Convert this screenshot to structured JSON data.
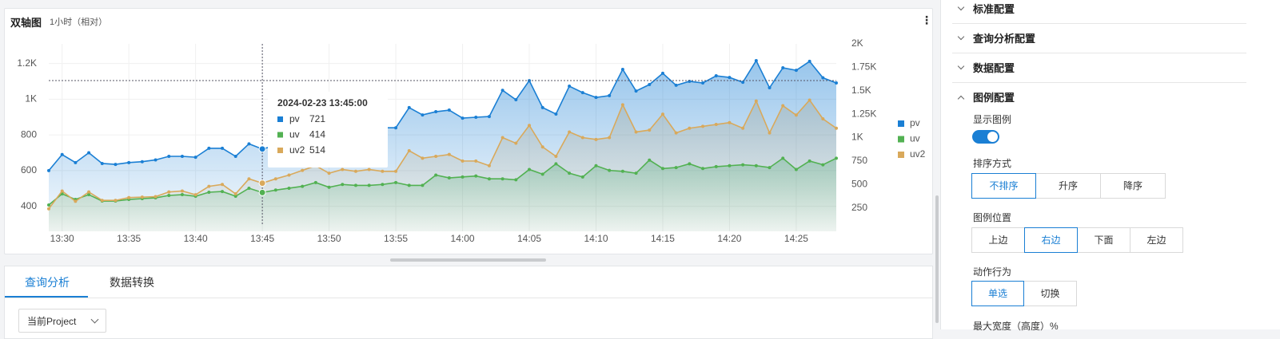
{
  "header": {
    "title": "双轴图",
    "subtitle": "1小时（相对）"
  },
  "chart_data": {
    "type": "line",
    "categories": [
      null,
      "13:30",
      null,
      null,
      null,
      null,
      "13:35",
      null,
      null,
      null,
      null,
      "13:40",
      null,
      null,
      null,
      null,
      "13:45",
      null,
      null,
      null,
      null,
      "13:50",
      null,
      null,
      null,
      null,
      "13:55",
      null,
      null,
      null,
      null,
      "14:00",
      null,
      null,
      null,
      null,
      "14:05",
      null,
      null,
      null,
      null,
      "14:10",
      null,
      null,
      null,
      null,
      "14:15",
      null,
      null,
      null,
      null,
      "14:20",
      null,
      null,
      null,
      null,
      "14:25",
      null,
      null,
      null
    ],
    "series": [
      {
        "name": "pv",
        "color": "#1a7fd4",
        "area": true,
        "values": [
          600,
          690,
          645,
          700,
          640,
          635,
          645,
          650,
          660,
          680,
          680,
          675,
          725,
          725,
          680,
          750,
          721,
          740,
          750,
          770,
          780,
          790,
          810,
          830,
          863,
          840,
          840,
          953,
          912,
          930,
          939,
          894,
          899,
          903,
          1050,
          997,
          1104,
          953,
          917,
          1073,
          1037,
          1010,
          1020,
          1167,
          1046,
          1082,
          1145,
          1078,
          1100,
          1091,
          1131,
          1122,
          1095,
          1216,
          1064,
          1176,
          1162,
          1212,
          1120,
          1091
        ]
      },
      {
        "name": "uv",
        "color": "#52b152",
        "axis": "y2",
        "area": true,
        "values": [
          281,
          400,
          340,
          391,
          323,
          323,
          340,
          349,
          357,
          383,
          391,
          374,
          417,
          425,
          374,
          460,
          414,
          440,
          460,
          480,
          520,
          470,
          500,
          490,
          490,
          500,
          520,
          490,
          490,
          600,
          570,
          580,
          590,
          560,
          560,
          550,
          660,
          610,
          720,
          620,
          580,
          700,
          650,
          640,
          620,
          760,
          670,
          680,
          720,
          670,
          690,
          700,
          710,
          700,
          680,
          780,
          660,
          750,
          710,
          780
        ]
      },
      {
        "name": "uv2",
        "color": "#d9a95b",
        "axis": "y2",
        "area": true,
        "values": [
          240,
          430,
          320,
          420,
          330,
          330,
          360,
          365,
          370,
          420,
          430,
          390,
          480,
          500,
          400,
          560,
          514,
          560,
          600,
          650,
          700,
          620,
          660,
          640,
          660,
          640,
          640,
          860,
          780,
          800,
          820,
          750,
          750,
          700,
          1000,
          940,
          1130,
          900,
          800,
          1060,
          1000,
          980,
          1000,
          1350,
          1060,
          1080,
          1250,
          1050,
          1100,
          1120,
          1140,
          1160,
          1100,
          1390,
          1050,
          1340,
          1240,
          1400,
          1200,
          1100
        ]
      }
    ],
    "ylim": [
      260,
      1310
    ],
    "yticks": [
      400,
      600,
      800,
      {
        "value": 1000,
        "label": "1K"
      },
      {
        "value": 1200,
        "label": "1.2K"
      }
    ],
    "y2lim": [
      0,
      2000
    ],
    "y2ticks": [
      250,
      500,
      750,
      {
        "value": 1000,
        "label": "1K"
      },
      {
        "value": 1250,
        "label": "1.25K"
      },
      {
        "value": 1500,
        "label": "1.5K"
      },
      {
        "value": 1750,
        "label": "1.75K"
      },
      {
        "value": 2000,
        "label": "2K"
      }
    ],
    "grid": true,
    "legend": "right"
  },
  "tooltip": {
    "title": "2024-02-23 13:45:00"
  },
  "tabs": [
    "查询分析",
    "数据转换"
  ],
  "project_select": "当前Project",
  "settings": {
    "sections": [
      "标准配置",
      "查询分析配置",
      "数据配置",
      "图例配置"
    ],
    "show_legend": "显示图例",
    "sort": {
      "label": "排序方式",
      "options": [
        "不排序",
        "升序",
        "降序"
      ]
    },
    "position": {
      "label": "图例位置",
      "options": [
        "上边",
        "右边",
        "下面",
        "左边"
      ]
    },
    "action": {
      "label": "动作行为",
      "options": [
        "单选",
        "切换"
      ]
    },
    "max_width": "最大宽度（高度）%"
  }
}
